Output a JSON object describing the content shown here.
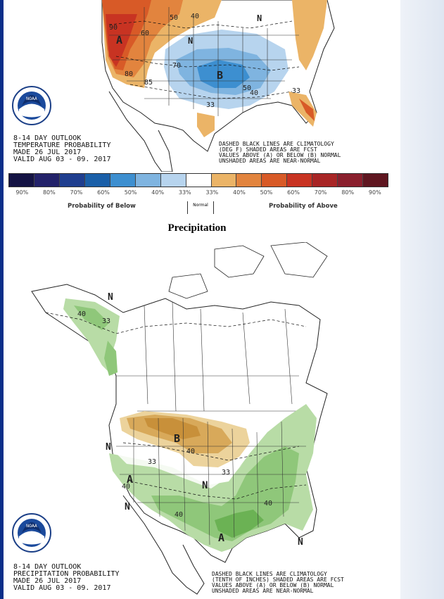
{
  "temperature": {
    "header_lines": [
      "8-14 DAY OUTLOOK",
      "TEMPERATURE PROBABILITY",
      "MADE   26 JUL 2017",
      "VALID  AUG 03 - 09. 2017"
    ],
    "note_lines": [
      "DASHED BLACK LINES ARE CLIMATOLOGY",
      "(DEG F) SHADED AREAS ARE FCST",
      "VALUES ABOVE (A) OR BELOW (B) NORMAL",
      "UNSHADED AREAS ARE NEAR-NORMAL"
    ],
    "map_labels": {
      "a": "A",
      "b": "B",
      "n_east": "N",
      "n_mid": "N",
      "v60": "60",
      "v50": "50",
      "v40": "40",
      "v33": "33",
      "v70": "70",
      "v90": "90",
      "v80": "80",
      "v85": "85",
      "v50b": "50",
      "v40b": "40",
      "v33b": "33"
    }
  },
  "legend": {
    "colors": [
      "#141344",
      "#23226a",
      "#1f3e8f",
      "#1a5fa8",
      "#3d8fd0",
      "#7fb4e0",
      "#b7d4ee",
      "#ffffff",
      "#ebb467",
      "#e2843e",
      "#d85a27",
      "#c83322",
      "#a82525",
      "#8a1f2d",
      "#5f1620"
    ],
    "labels": [
      "90%",
      "80%",
      "70%",
      "60%",
      "50%",
      "40%",
      "33%",
      "33%",
      "40%",
      "50%",
      "60%",
      "70%",
      "80%",
      "90%"
    ],
    "below_caption": "Probability of Below",
    "normal_caption": "Normal",
    "above_caption": "Probability of Above"
  },
  "precipitation": {
    "heading": "Precipitation",
    "header_lines": [
      "8-14 DAY OUTLOOK",
      "PRECIPITATION PROBABILITY",
      "MADE   26 JUL 2017",
      "VALID  AUG 03 - 09. 2017"
    ],
    "note_lines": [
      "DASHED BLACK LINES ARE CLIMATOLOGY",
      "(TENTH OF INCHES) SHADED AREAS ARE FCST",
      "VALUES ABOVE (A) OR BELOW (B) NORMAL",
      "UNSHADED AREAS ARE NEAR-NORMAL"
    ],
    "map_labels": {
      "n_alaska": "N",
      "v40_ak": "40",
      "v33_ak": "33",
      "b": "B",
      "v40_b": "40",
      "v33_b": "33",
      "n_west": "N",
      "a_west": "A",
      "v40_w": "40",
      "v33_w": "33",
      "n_mid": "N",
      "n_sw": "N",
      "v40_sw": "40",
      "v40_se": "40",
      "a_south": "A",
      "n_ne": "N"
    }
  },
  "noaa_logo_text": "NOAA"
}
